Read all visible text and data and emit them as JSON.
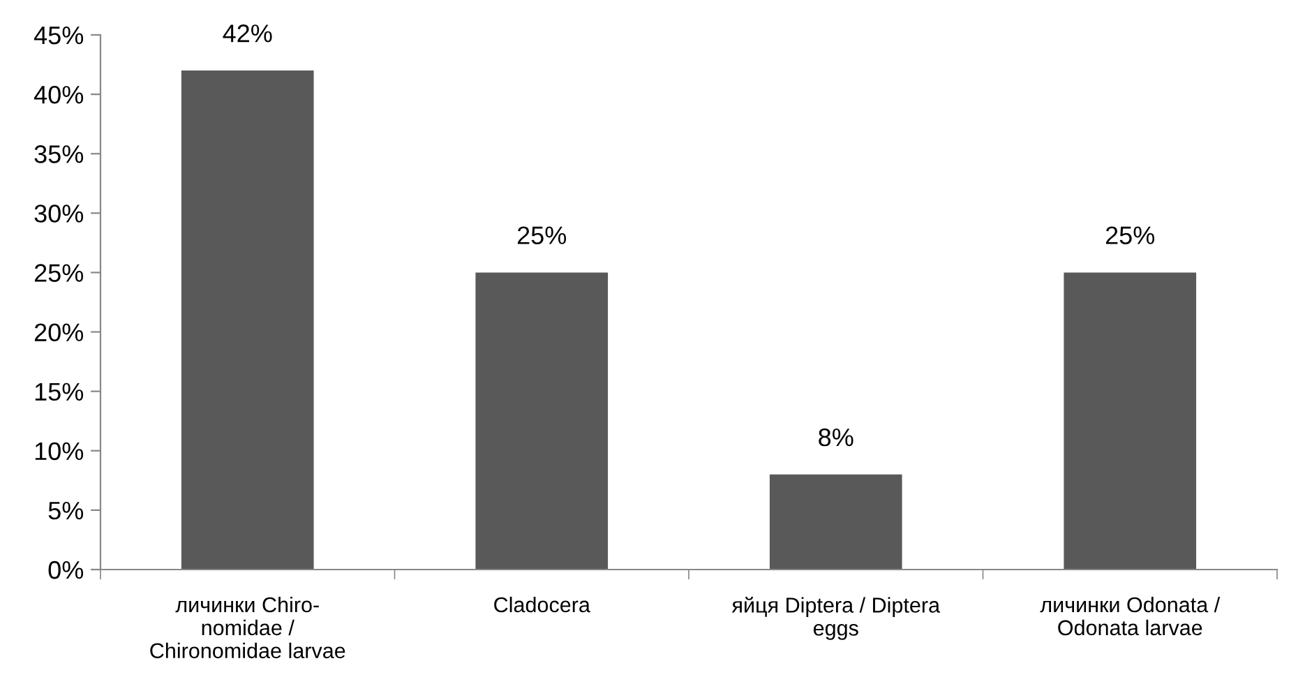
{
  "chart_data": {
    "type": "bar",
    "categories": [
      "личинки Chiro-\nnomidae /\nChironomidae larvae",
      "Cladocera",
      "яйця Diptera / Diptera\neggs",
      "личинки Odonata /\nOdonata larvae"
    ],
    "values": [
      42,
      25,
      8,
      25
    ],
    "value_labels": [
      "42%",
      "25%",
      "8%",
      "25%"
    ],
    "color": "#595959",
    "ylim": [
      0,
      45
    ],
    "yticks": [
      {
        "value": 0,
        "label": "0%"
      },
      {
        "value": 5,
        "label": "5%"
      },
      {
        "value": 10,
        "label": "10%"
      },
      {
        "value": 15,
        "label": "15%"
      },
      {
        "value": 20,
        "label": "20%"
      },
      {
        "value": 25,
        "label": "25%"
      },
      {
        "value": 30,
        "label": "30%"
      },
      {
        "value": 35,
        "label": "35%"
      },
      {
        "value": 40,
        "label": "40%"
      },
      {
        "value": 45,
        "label": "45%"
      }
    ],
    "grid": false,
    "legend": false
  }
}
